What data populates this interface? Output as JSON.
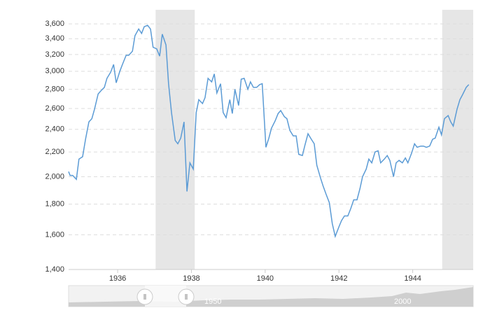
{
  "chart_data": {
    "type": "line",
    "log_scale_y": true,
    "grid": true,
    "x": [
      1934.67,
      1934.71,
      1934.78,
      1934.88,
      1934.95,
      1935.05,
      1935.13,
      1935.22,
      1935.3,
      1935.37,
      1935.47,
      1935.54,
      1935.64,
      1935.71,
      1935.81,
      1935.89,
      1935.96,
      1936.06,
      1936.13,
      1936.23,
      1936.3,
      1936.4,
      1936.47,
      1936.57,
      1936.65,
      1936.72,
      1936.81,
      1936.89,
      1936.96,
      1937.06,
      1937.14,
      1937.21,
      1937.31,
      1937.38,
      1937.46,
      1937.56,
      1937.63,
      1937.71,
      1937.8,
      1937.88,
      1937.96,
      1938.05,
      1938.13,
      1938.2,
      1938.3,
      1938.37,
      1938.45,
      1938.55,
      1938.62,
      1938.69,
      1938.79,
      1938.86,
      1938.94,
      1939.04,
      1939.11,
      1939.18,
      1939.28,
      1939.35,
      1939.43,
      1939.53,
      1939.6,
      1939.68,
      1939.77,
      1939.85,
      1939.92,
      1940.02,
      1940.1,
      1940.17,
      1940.27,
      1940.35,
      1940.42,
      1940.52,
      1940.59,
      1940.67,
      1940.76,
      1940.84,
      1940.91,
      1941.01,
      1941.08,
      1941.16,
      1941.25,
      1941.33,
      1941.4,
      1941.5,
      1941.57,
      1941.65,
      1941.74,
      1941.82,
      1941.9,
      1942.0,
      1942.07,
      1942.15,
      1942.24,
      1942.32,
      1942.4,
      1942.49,
      1942.57,
      1942.64,
      1942.74,
      1942.81,
      1942.89,
      1942.98,
      1943.06,
      1943.13,
      1943.23,
      1943.31,
      1943.38,
      1943.48,
      1943.55,
      1943.63,
      1943.72,
      1943.8,
      1943.87,
      1943.97,
      1944.05,
      1944.12,
      1944.22,
      1944.29,
      1944.37,
      1944.46,
      1944.54,
      1944.61,
      1944.71,
      1944.78,
      1944.86,
      1944.96,
      1945.03,
      1945.1,
      1945.2,
      1945.28,
      1945.35,
      1945.45,
      1945.52
    ],
    "series": [
      {
        "color": "#5b9bd5",
        "values": [
          2040,
          2010,
          2010,
          1980,
          2140,
          2160,
          2310,
          2470,
          2500,
          2590,
          2750,
          2780,
          2820,
          2920,
          2990,
          3080,
          2870,
          3000,
          3080,
          3190,
          3190,
          3240,
          3440,
          3530,
          3470,
          3560,
          3580,
          3530,
          3290,
          3270,
          3180,
          3460,
          3320,
          2860,
          2560,
          2300,
          2270,
          2320,
          2470,
          1890,
          2110,
          2060,
          2560,
          2690,
          2650,
          2710,
          2920,
          2880,
          2970,
          2760,
          2860,
          2560,
          2510,
          2690,
          2550,
          2800,
          2630,
          2910,
          2920,
          2800,
          2880,
          2820,
          2820,
          2850,
          2860,
          2240,
          2320,
          2410,
          2480,
          2550,
          2580,
          2520,
          2500,
          2390,
          2340,
          2340,
          2180,
          2170,
          2260,
          2360,
          2310,
          2270,
          2090,
          1990,
          1930,
          1870,
          1810,
          1670,
          1590,
          1650,
          1690,
          1720,
          1720,
          1770,
          1830,
          1830,
          1910,
          2000,
          2060,
          2140,
          2110,
          2200,
          2210,
          2110,
          2140,
          2170,
          2130,
          2000,
          2110,
          2130,
          2110,
          2150,
          2110,
          2190,
          2270,
          2240,
          2250,
          2250,
          2240,
          2250,
          2310,
          2320,
          2420,
          2350,
          2500,
          2530,
          2470,
          2430,
          2590,
          2690,
          2740,
          2820,
          2850
        ]
      }
    ],
    "xlim": [
      1934.67,
      1945.64
    ],
    "xticks": [
      1936,
      1938,
      1940,
      1942,
      1944
    ],
    "ylim": [
      1400,
      3800
    ],
    "yticks": [
      {
        "value": 1400,
        "label": "1,400"
      },
      {
        "value": 1600,
        "label": "1,600"
      },
      {
        "value": 1800,
        "label": "1,800"
      },
      {
        "value": 2000,
        "label": "2,000"
      },
      {
        "value": 2200,
        "label": "2,200"
      },
      {
        "value": 2400,
        "label": "2,400"
      },
      {
        "value": 2600,
        "label": "2,600"
      },
      {
        "value": 2800,
        "label": "2,800"
      },
      {
        "value": 3000,
        "label": "3,000"
      },
      {
        "value": 3200,
        "label": "3,200"
      },
      {
        "value": 3400,
        "label": "3,400"
      },
      {
        "value": 3600,
        "label": "3,600"
      }
    ],
    "shaded_periods": [
      [
        1937.03,
        1938.09
      ],
      [
        1944.8,
        1945.64
      ]
    ],
    "shade_color": "#e6e6e6",
    "navigator": {
      "labels": [
        "1950",
        "2000"
      ]
    }
  }
}
